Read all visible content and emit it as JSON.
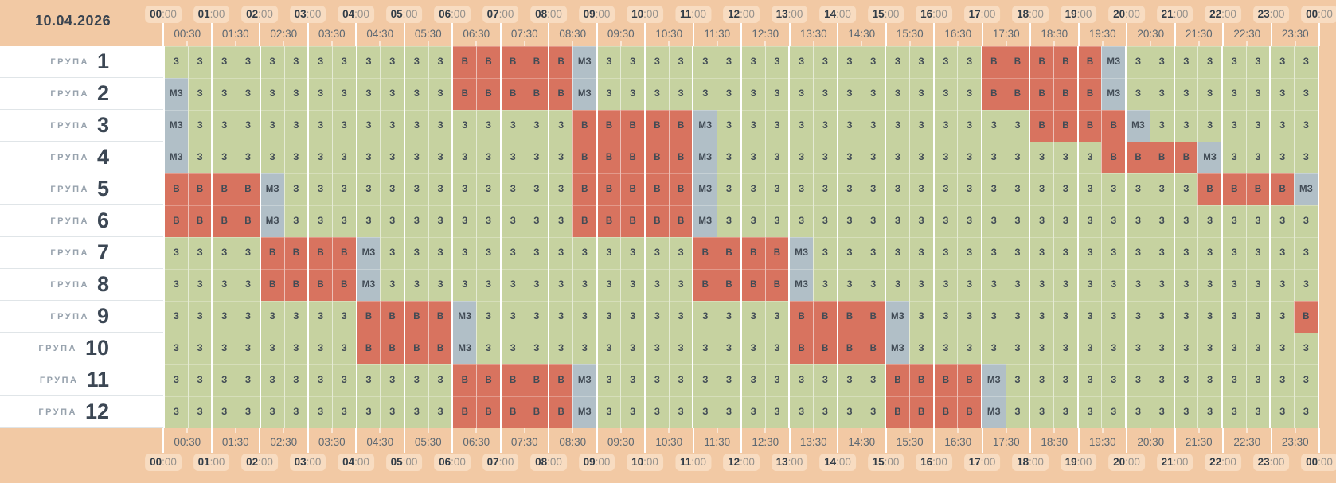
{
  "date": "10.04.2026",
  "row_label_prefix": "ГРУПА",
  "time_axis": {
    "hours": [
      "00:00",
      "01:00",
      "02:00",
      "03:00",
      "04:00",
      "05:00",
      "06:00",
      "07:00",
      "08:00",
      "09:00",
      "10:00",
      "11:00",
      "12:00",
      "13:00",
      "14:00",
      "15:00",
      "16:00",
      "17:00",
      "18:00",
      "19:00",
      "20:00",
      "21:00",
      "22:00",
      "23:00",
      "00:00"
    ],
    "half_hours": [
      "00:30",
      "01:30",
      "02:30",
      "03:30",
      "04:30",
      "05:30",
      "06:30",
      "07:30",
      "08:30",
      "09:30",
      "10:30",
      "11:30",
      "12:30",
      "13:30",
      "14:30",
      "15:30",
      "16:30",
      "17:30",
      "18:30",
      "19:30",
      "20:30",
      "21:30",
      "22:30",
      "23:30"
    ]
  },
  "states": [
    {
      "code": "З",
      "color": "#c6d2a0"
    },
    {
      "code": "В",
      "color": "#d8735f"
    },
    {
      "code": "МЗ",
      "color": "#b1bfc7"
    }
  ],
  "colors": {
    "header_bg": "#f2c9a4",
    "hour_pill_bg": "#f8dcc1",
    "hour_text": "#323d48",
    "minute_text": "#95918c",
    "half_hour_text": "#5d6872",
    "cell_text": "#414b55",
    "group_prefix_text": "#97a2ad",
    "group_number_text": "#3c4754",
    "row_bg": "#ffffff",
    "date_text": "#3a4450"
  },
  "groups": [
    {
      "number": "1",
      "slots": "З З З З З З З З З З З З В В В В В МЗ З З З З З З З З З З З З З З З З В В В В В МЗ З З З З З З З З"
    },
    {
      "number": "2",
      "slots": "МЗ З З З З З З З З З З З В В В В В МЗ З З З З З З З З З З З З З З З З В В В В В МЗ З З З З З З З З"
    },
    {
      "number": "3",
      "slots": "МЗ З З З З З З З З З З З З З З З З В В В В В МЗ З З З З З З З З З З З З З В В В В МЗ З З З З З З З"
    },
    {
      "number": "4",
      "slots": "МЗ З З З З З З З З З З З З З З З З В В В В В МЗ З З З З З З З З З З З З З З З З В В В В МЗ З З З З"
    },
    {
      "number": "5",
      "slots": "В В В В МЗ З З З З З З З З З З З З В В В В В МЗ З З З З З З З З З З З З З З З З З З З З В В В В МЗ"
    },
    {
      "number": "6",
      "slots": "В В В В МЗ З З З З З З З З З З З З В В В В В МЗ З З З З З З З З З З З З З З З З З З З З З З З З З"
    },
    {
      "number": "7",
      "slots": "З З З З В В В В МЗ З З З З З З З З З З З З З В В В В МЗ З З З З З З З З З З З З З З З З З З З З З"
    },
    {
      "number": "8",
      "slots": "З З З З В В В В МЗ З З З З З З З З З З З З З В В В В МЗ З З З З З З З З З З З З З З З З З З З З З"
    },
    {
      "number": "9",
      "slots": "З З З З З З З З В В В В МЗ З З З З З З З З З З З З З В В В В МЗ З З З З З З З З З З З З З З З З В"
    },
    {
      "number": "10",
      "slots": "З З З З З З З З В В В В МЗ З З З З З З З З З З З З З В В В В МЗ З З З З З З З З З З З З З З З З З"
    },
    {
      "number": "11",
      "slots": "З З З З З З З З З З З З В В В В В МЗ З З З З З З З З З З З З В В В В МЗ З З З З З З З З З З З З З"
    },
    {
      "number": "12",
      "slots": "З З З З З З З З З З З З В В В В В МЗ З З З З З З З З З З З З В В В В МЗ З З З З З З З З З З З З З"
    }
  ]
}
